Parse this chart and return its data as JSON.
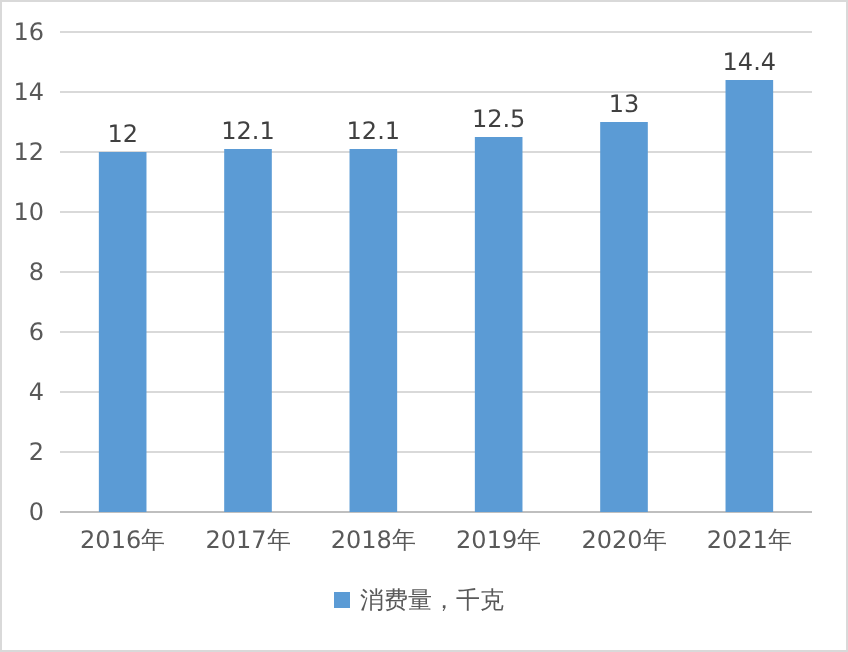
{
  "chart_data": {
    "type": "bar",
    "categories": [
      "2016年",
      "2017年",
      "2018年",
      "2019年",
      "2020年",
      "2021年"
    ],
    "series": [
      {
        "name": "消费量，千克",
        "color": "#5b9bd5",
        "values": [
          12,
          12.1,
          12.1,
          12.5,
          13,
          14.4
        ]
      }
    ],
    "ylim": [
      0,
      16
    ],
    "yticks": [
      0,
      2,
      4,
      6,
      8,
      10,
      12,
      14,
      16
    ],
    "grid": "y",
    "legend": "bottom",
    "data_labels": true
  }
}
